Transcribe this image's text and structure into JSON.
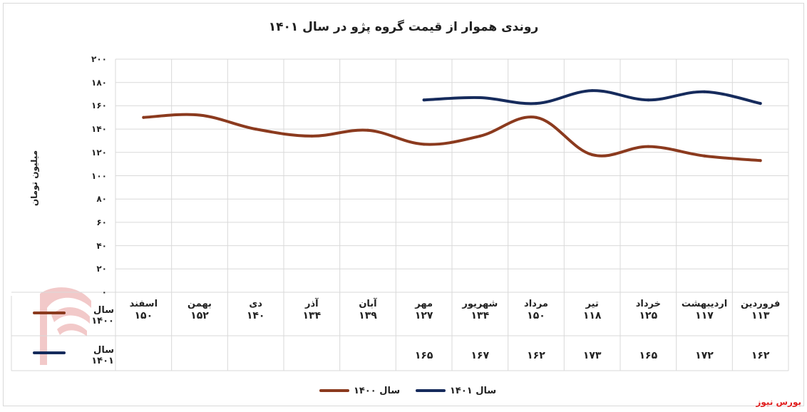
{
  "chart_data": {
    "type": "line",
    "title": "روندی هموار از قیمت گروه پژو در سال ۱۴۰۱",
    "ylabel": "میلیون تومان",
    "ylim": [
      0,
      200
    ],
    "yticks": [
      "۰",
      "۲۰",
      "۴۰",
      "۶۰",
      "۸۰",
      "۱۰۰",
      "۱۲۰",
      "۱۴۰",
      "۱۶۰",
      "۱۸۰",
      "۲۰۰"
    ],
    "grid": true,
    "legend_position": "bottom",
    "categories": [
      "فروردین",
      "اردیبهشت",
      "خرداد",
      "تیر",
      "مرداد",
      "شهریور",
      "مهر",
      "آبان",
      "آذر",
      "دی",
      "بهمن",
      "اسفند"
    ],
    "series": [
      {
        "name": "سال ۱۴۰۰",
        "color": "#8b3a1e",
        "values": [
          113,
          117,
          125,
          118,
          150,
          134,
          127,
          139,
          134,
          140,
          152,
          150
        ],
        "labels": [
          "۱۱۳",
          "۱۱۷",
          "۱۲۵",
          "۱۱۸",
          "۱۵۰",
          "۱۳۴",
          "۱۲۷",
          "۱۳۹",
          "۱۳۴",
          "۱۴۰",
          "۱۵۲",
          "۱۵۰"
        ]
      },
      {
        "name": "سال ۱۴۰۱",
        "color": "#162b5c",
        "values": [
          162,
          172,
          165,
          173,
          162,
          167,
          165,
          null,
          null,
          null,
          null,
          null
        ],
        "labels": [
          "۱۶۲",
          "۱۷۲",
          "۱۶۵",
          "۱۷۳",
          "۱۶۲",
          "۱۶۷",
          "۱۶۵",
          "",
          "",
          "",
          "",
          ""
        ]
      }
    ]
  },
  "source": {
    "label": "بورس نیوز",
    "watermark_text": "بورس نیوز",
    "watermark_color": "#e03030"
  }
}
